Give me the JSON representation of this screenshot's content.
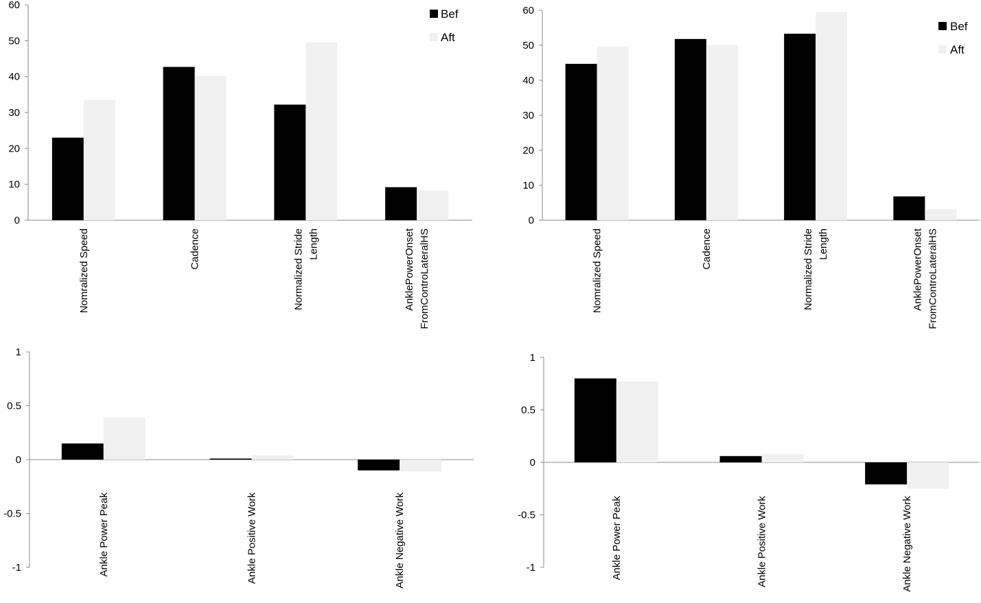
{
  "colors": {
    "bef": "#000000",
    "aft": "#f0f0f0",
    "axis": "#888888",
    "text": "#000000"
  },
  "chart_data": [
    {
      "type": "bar",
      "position": "top-left",
      "categories": [
        [
          "Nomralized Speed"
        ],
        [
          "Cadence"
        ],
        [
          "Normalized Stride",
          "Length"
        ],
        [
          "AnklePowerOnset",
          "FromControLateralHS"
        ]
      ],
      "series": [
        {
          "name": "Bef",
          "values": [
            23,
            42.7,
            32.2,
            9.2
          ]
        },
        {
          "name": "Aft",
          "values": [
            33.5,
            40.2,
            49.5,
            8.3
          ]
        }
      ],
      "ylim": [
        0,
        60
      ],
      "yticks": [
        "0",
        "10",
        "20",
        "30",
        "40",
        "50",
        "60"
      ],
      "legend": [
        "Bef",
        "Aft"
      ]
    },
    {
      "type": "bar",
      "position": "top-right",
      "categories": [
        [
          "Nomralized Speed"
        ],
        [
          "Cadence"
        ],
        [
          "Normalized Stride",
          "Length"
        ],
        [
          "AnklePowerOnset",
          "FromControLateralHS"
        ]
      ],
      "series": [
        {
          "name": "Bef",
          "values": [
            44.7,
            51.8,
            53.3,
            6.8
          ]
        },
        {
          "name": "Aft",
          "values": [
            49.7,
            50.1,
            59.5,
            3.2
          ]
        }
      ],
      "ylim": [
        0,
        60
      ],
      "yticks": [
        "0",
        "10",
        "20",
        "30",
        "40",
        "50",
        "60"
      ],
      "legend": [
        "Bef",
        "Aft"
      ]
    },
    {
      "type": "bar",
      "position": "bottom-left",
      "categories": [
        [
          "Ankle Power Peak"
        ],
        [
          "Ankle Positive Work"
        ],
        [
          "Ankle Negative Work"
        ]
      ],
      "series": [
        {
          "name": "Bef",
          "values": [
            0.15,
            0.01,
            -0.1
          ]
        },
        {
          "name": "Aft",
          "values": [
            0.39,
            0.04,
            -0.11
          ]
        }
      ],
      "ylim": [
        -1,
        1
      ],
      "yticks": [
        "-1",
        "-0.5",
        "0",
        "0.5",
        "1"
      ]
    },
    {
      "type": "bar",
      "position": "bottom-right",
      "categories": [
        [
          "Ankle Power Peak"
        ],
        [
          "Ankle Positive Work"
        ],
        [
          "Ankle Negative Work"
        ]
      ],
      "series": [
        {
          "name": "Bef",
          "values": [
            0.8,
            0.06,
            -0.21
          ]
        },
        {
          "name": "Aft",
          "values": [
            0.77,
            0.08,
            -0.25
          ]
        }
      ],
      "ylim": [
        -1,
        1
      ],
      "yticks": [
        "-1",
        "-0.5",
        "0",
        "0.5",
        "1"
      ]
    }
  ]
}
